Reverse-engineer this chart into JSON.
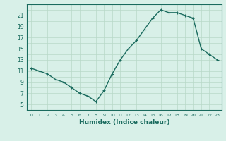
{
  "x": [
    0,
    1,
    2,
    3,
    4,
    5,
    6,
    7,
    8,
    9,
    10,
    11,
    12,
    13,
    14,
    15,
    16,
    17,
    18,
    19,
    20,
    21,
    22,
    23
  ],
  "y": [
    11.5,
    11.0,
    10.5,
    9.5,
    9.0,
    8.0,
    7.0,
    6.5,
    5.5,
    7.5,
    10.5,
    13.0,
    15.0,
    16.5,
    18.5,
    20.5,
    22.0,
    21.5,
    21.5,
    21.0,
    20.5,
    15.0,
    14.0,
    13.0
  ],
  "xlabel": "Humidex (Indice chaleur)",
  "ylabel": "",
  "ylim": [
    4,
    23
  ],
  "xlim": [
    -0.5,
    23.5
  ],
  "yticks": [
    5,
    7,
    9,
    11,
    13,
    15,
    17,
    19,
    21
  ],
  "xticks": [
    0,
    1,
    2,
    3,
    4,
    5,
    6,
    7,
    8,
    9,
    10,
    11,
    12,
    13,
    14,
    15,
    16,
    17,
    18,
    19,
    20,
    21,
    22,
    23
  ],
  "line_color": "#1a6b5e",
  "marker": "+",
  "bg_color": "#d8f0e8",
  "grid_color": "#b8d8c8",
  "title": ""
}
